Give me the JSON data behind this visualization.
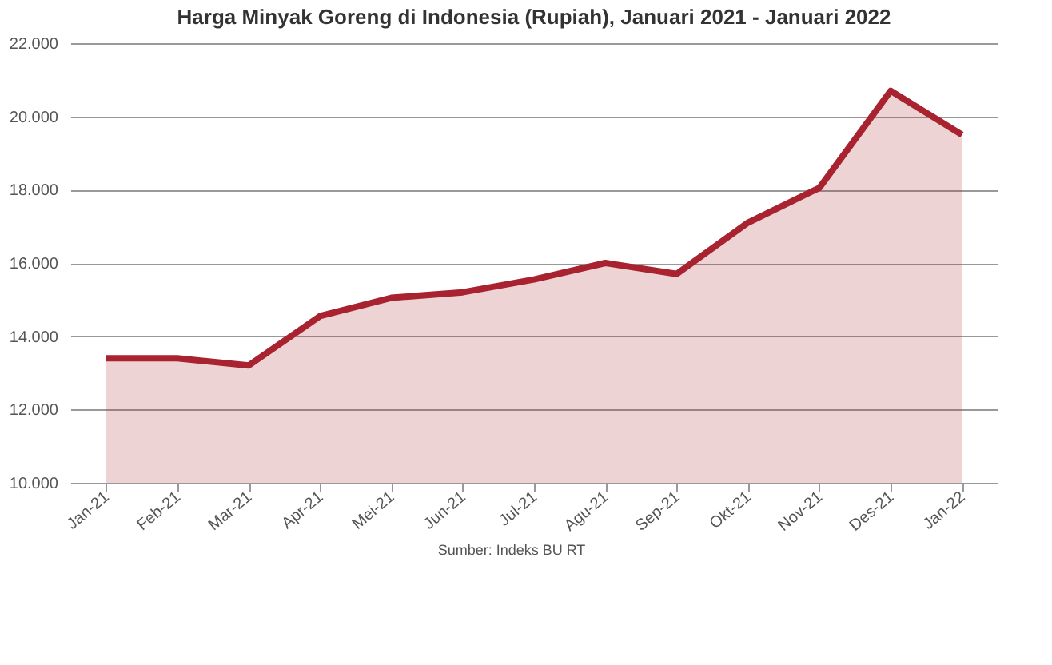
{
  "chart_data": {
    "type": "area",
    "title": "Harga Minyak Goreng di Indonesia (Rupiah), Januari 2021 - Januari 2022",
    "categories": [
      "Jan-21",
      "Feb-21",
      "Mar-21",
      "Apr-21",
      "Mei-21",
      "Jun-21",
      "Jul-21",
      "Agu-21",
      "Sep-21",
      "Okt-21",
      "Nov-21",
      "Des-21",
      "Jan-22"
    ],
    "series": [
      {
        "color": "#a8232f",
        "values": [
          13400,
          13400,
          13200,
          14550,
          15050,
          15200,
          15550,
          16000,
          15700,
          17100,
          18050,
          20700,
          19500
        ]
      }
    ],
    "ylim": [
      10000,
      22000
    ],
    "yticks": [
      {
        "value": 10000,
        "label": "10.000"
      },
      {
        "value": 12000,
        "label": "12.000"
      },
      {
        "value": 14000,
        "label": "14.000"
      },
      {
        "value": 16000,
        "label": "16.000"
      },
      {
        "value": 18000,
        "label": "18.000"
      },
      {
        "value": 20000,
        "label": "20.000"
      },
      {
        "value": 22000,
        "label": "22.000"
      }
    ],
    "grid": "y",
    "marker": "none",
    "line_style": "solid",
    "annotations": [
      "Sumber: Indeks BU RT"
    ]
  }
}
